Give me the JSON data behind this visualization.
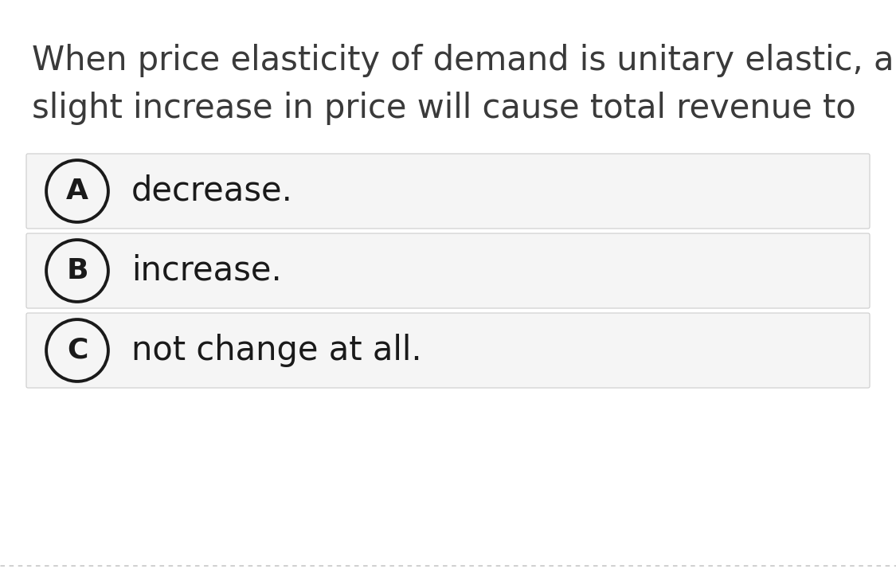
{
  "background_color": "#ffffff",
  "question_text_line1": "When price elasticity of demand is unitary elastic, a",
  "question_text_line2": "slight increase in price will cause total revenue to",
  "question_font_size": 30,
  "question_color": "#3a3a3a",
  "options": [
    {
      "label": "A",
      "text": "decrease."
    },
    {
      "label": "B",
      "text": "increase."
    },
    {
      "label": "C",
      "text": "not change at all."
    }
  ],
  "option_font_size": 30,
  "option_label_font_size": 26,
  "option_text_color": "#1a1a1a",
  "option_bg_color": "#f5f5f5",
  "option_border_color": "#cccccc",
  "circle_edge_color": "#1a1a1a",
  "circle_face_color": "#f5f5f5",
  "circle_linewidth": 2.8,
  "dashed_line_color": "#bbbbbb",
  "fig_width": 11.25,
  "fig_height": 7.32,
  "dpi": 100
}
